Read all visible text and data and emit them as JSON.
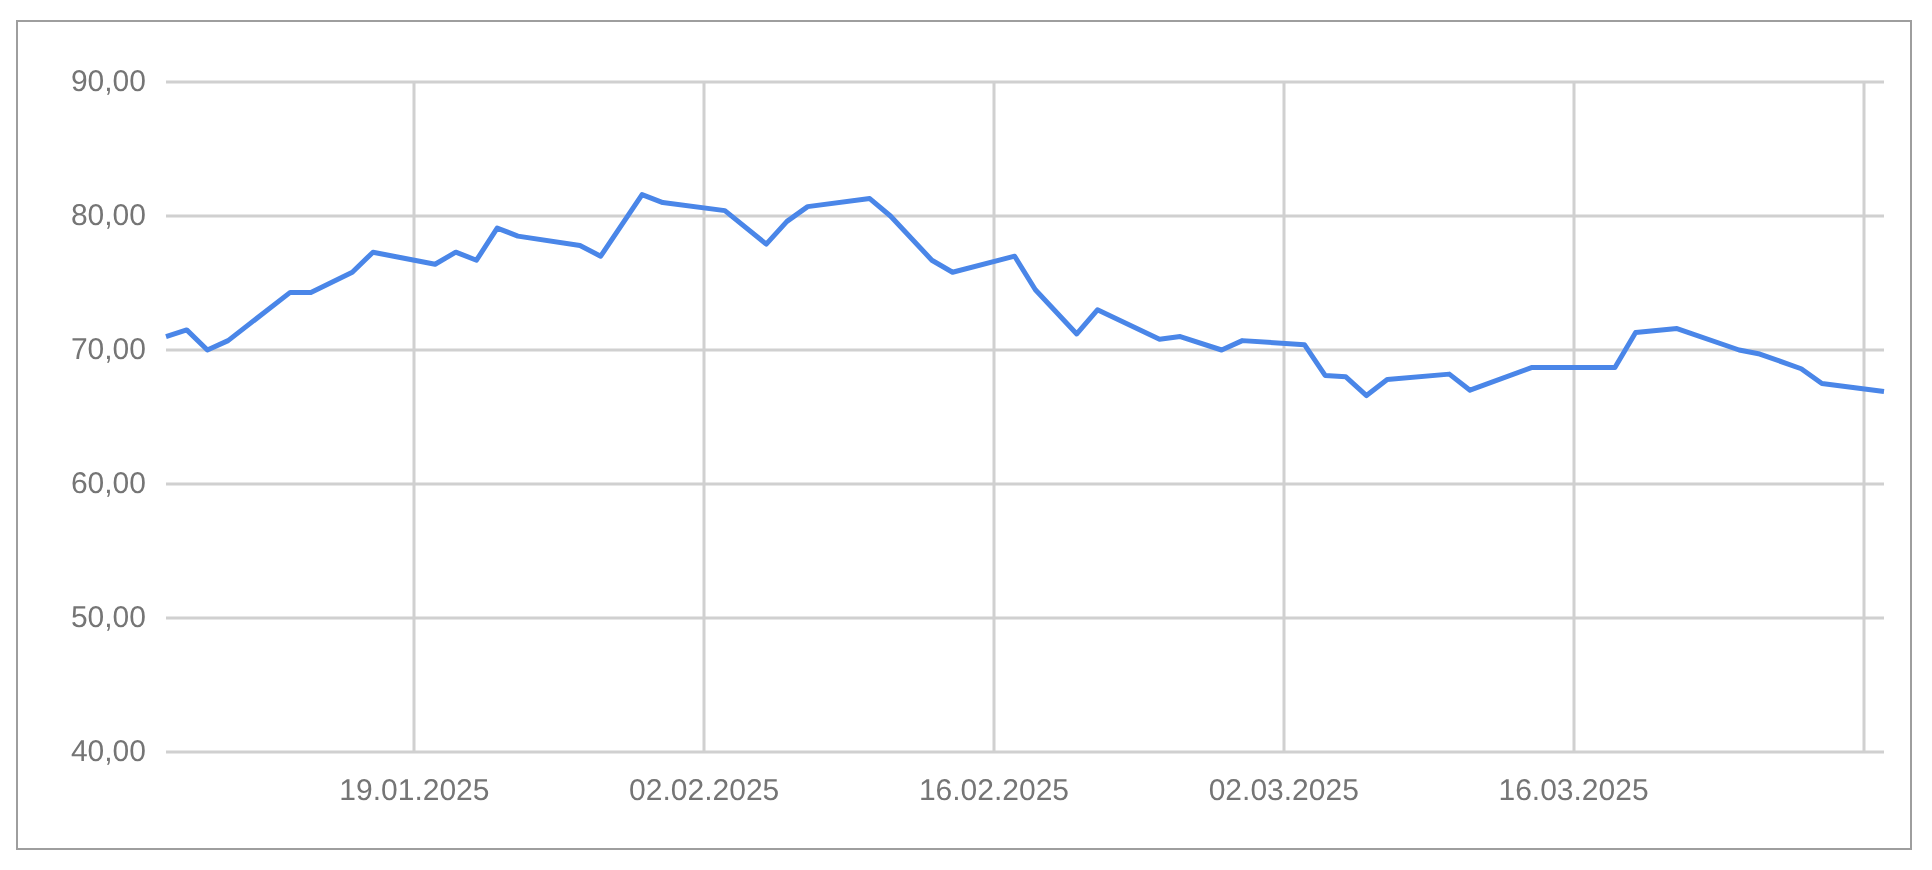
{
  "chart_data": {
    "type": "line",
    "color": "#4a86e8",
    "grid": true,
    "marker": "none",
    "line_style": "solid",
    "x": [
      "2025-01-07",
      "2025-01-08",
      "2025-01-09",
      "2025-01-10",
      "2025-01-13",
      "2025-01-14",
      "2025-01-16",
      "2025-01-17",
      "2025-01-20",
      "2025-01-21",
      "2025-01-22",
      "2025-01-23",
      "2025-01-24",
      "2025-01-27",
      "2025-01-28",
      "2025-01-30",
      "2025-01-31",
      "2025-02-03",
      "2025-02-05",
      "2025-02-06",
      "2025-02-07",
      "2025-02-10",
      "2025-02-11",
      "2025-02-13",
      "2025-02-14",
      "2025-02-17",
      "2025-02-18",
      "2025-02-20",
      "2025-02-21",
      "2025-02-24",
      "2025-02-25",
      "2025-02-27",
      "2025-02-28",
      "2025-03-03",
      "2025-03-04",
      "2025-03-05",
      "2025-03-06",
      "2025-03-07",
      "2025-03-10",
      "2025-03-11",
      "2025-03-14",
      "2025-03-17",
      "2025-03-18",
      "2025-03-19",
      "2025-03-21",
      "2025-03-24",
      "2025-03-25",
      "2025-03-27",
      "2025-03-28",
      "2025-03-31"
    ],
    "values": [
      71.0,
      71.5,
      70.0,
      70.7,
      74.3,
      74.3,
      75.8,
      77.3,
      76.4,
      77.3,
      76.7,
      79.1,
      78.5,
      77.8,
      77.0,
      81.6,
      81.0,
      80.4,
      77.9,
      79.6,
      80.7,
      81.3,
      80.0,
      76.7,
      75.8,
      77.0,
      74.5,
      71.2,
      73.0,
      70.8,
      71.0,
      70.0,
      70.7,
      70.4,
      68.1,
      68.0,
      66.6,
      67.8,
      68.2,
      67.0,
      68.7,
      68.7,
      68.7,
      71.3,
      71.6,
      70.0,
      69.7,
      68.6,
      67.5,
      66.9
    ],
    "xlim": [
      "2025-01-07",
      "2025-03-31"
    ],
    "xticks": [
      {
        "value": "2025-01-19",
        "label": "19.01.2025"
      },
      {
        "value": "2025-02-02",
        "label": "02.02.2025"
      },
      {
        "value": "2025-02-16",
        "label": "16.02.2025"
      },
      {
        "value": "2025-03-02",
        "label": "02.03.2025"
      },
      {
        "value": "2025-03-16",
        "label": "16.03.2025"
      },
      {
        "value": "2025-03-30",
        "label": null
      }
    ],
    "ylim": [
      40,
      90
    ],
    "yticks": [
      {
        "value": 40,
        "label": "40,00"
      },
      {
        "value": 50,
        "label": "50,00"
      },
      {
        "value": 60,
        "label": "60,00"
      },
      {
        "value": 70,
        "label": "70,00"
      },
      {
        "value": 80,
        "label": "80,00"
      },
      {
        "value": 90,
        "label": "90,00"
      }
    ]
  }
}
